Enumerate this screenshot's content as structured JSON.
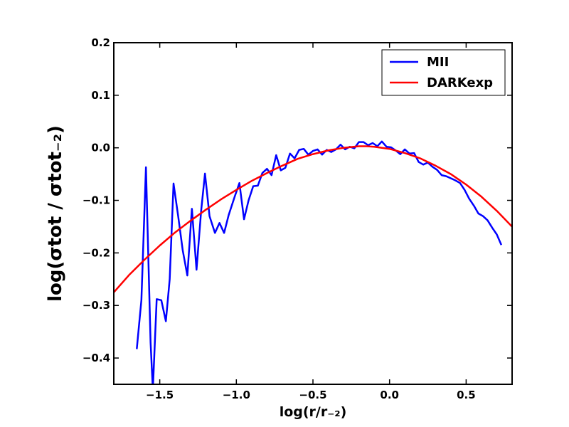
{
  "chart_data": {
    "type": "line",
    "title": "",
    "xlabel": "log(r/r₋₂)",
    "ylabel": "log(σtot / σtot₋₂)",
    "xlim": [
      -1.8,
      0.8
    ],
    "ylim": [
      -0.45,
      0.2
    ],
    "xticks": [
      -1.5,
      -1.0,
      -0.5,
      0.0,
      0.5
    ],
    "xtick_labels": [
      "−1.5",
      "−1.0",
      "−0.5",
      "0.0",
      "0.5"
    ],
    "yticks": [
      -0.4,
      -0.3,
      -0.2,
      -0.1,
      0.0,
      0.1,
      0.2
    ],
    "ytick_labels": [
      "−0.4",
      "−0.3",
      "−0.2",
      "−0.1",
      "0.0",
      "0.1",
      "0.2"
    ],
    "grid": false,
    "legend_position": "top-right",
    "series": [
      {
        "name": "MII",
        "color": "#0000ff",
        "points": [
          [
            -1.65,
            -0.383
          ],
          [
            -1.62,
            -0.29
          ],
          [
            -1.59,
            -0.037
          ],
          [
            -1.56,
            -0.37
          ],
          [
            -1.545,
            -0.46
          ],
          [
            -1.52,
            -0.288
          ],
          [
            -1.49,
            -0.29
          ],
          [
            -1.46,
            -0.33
          ],
          [
            -1.435,
            -0.25
          ],
          [
            -1.41,
            -0.068
          ],
          [
            -1.38,
            -0.13
          ],
          [
            -1.35,
            -0.195
          ],
          [
            -1.32,
            -0.243
          ],
          [
            -1.29,
            -0.116
          ],
          [
            -1.26,
            -0.232
          ],
          [
            -1.23,
            -0.12
          ],
          [
            -1.205,
            -0.049
          ],
          [
            -1.175,
            -0.13
          ],
          [
            -1.14,
            -0.162
          ],
          [
            -1.11,
            -0.143
          ],
          [
            -1.08,
            -0.162
          ],
          [
            -1.05,
            -0.128
          ],
          [
            -1.01,
            -0.092
          ],
          [
            -0.98,
            -0.067
          ],
          [
            -0.95,
            -0.136
          ],
          [
            -0.92,
            -0.1
          ],
          [
            -0.89,
            -0.073
          ],
          [
            -0.86,
            -0.072
          ],
          [
            -0.83,
            -0.048
          ],
          [
            -0.8,
            -0.04
          ],
          [
            -0.77,
            -0.052
          ],
          [
            -0.74,
            -0.014
          ],
          [
            -0.71,
            -0.043
          ],
          [
            -0.68,
            -0.038
          ],
          [
            -0.65,
            -0.011
          ],
          [
            -0.62,
            -0.02
          ],
          [
            -0.59,
            -0.004
          ],
          [
            -0.56,
            -0.002
          ],
          [
            -0.53,
            -0.013
          ],
          [
            -0.5,
            -0.006
          ],
          [
            -0.47,
            -0.003
          ],
          [
            -0.44,
            -0.013
          ],
          [
            -0.41,
            -0.004
          ],
          [
            -0.38,
            -0.008
          ],
          [
            -0.35,
            -0.003
          ],
          [
            -0.32,
            0.006
          ],
          [
            -0.29,
            -0.003
          ],
          [
            -0.26,
            0.002
          ],
          [
            -0.23,
            -0.001
          ],
          [
            -0.2,
            0.011
          ],
          [
            -0.17,
            0.011
          ],
          [
            -0.14,
            0.005
          ],
          [
            -0.11,
            0.009
          ],
          [
            -0.08,
            0.003
          ],
          [
            -0.05,
            0.012
          ],
          [
            -0.02,
            0.002
          ],
          [
            0.01,
            0.001
          ],
          [
            0.04,
            -0.005
          ],
          [
            0.07,
            -0.012
          ],
          [
            0.1,
            -0.003
          ],
          [
            0.13,
            -0.011
          ],
          [
            0.16,
            -0.01
          ],
          [
            0.19,
            -0.027
          ],
          [
            0.22,
            -0.032
          ],
          [
            0.25,
            -0.028
          ],
          [
            0.28,
            -0.036
          ],
          [
            0.31,
            -0.042
          ],
          [
            0.34,
            -0.052
          ],
          [
            0.37,
            -0.054
          ],
          [
            0.4,
            -0.058
          ],
          [
            0.43,
            -0.062
          ],
          [
            0.46,
            -0.067
          ],
          [
            0.49,
            -0.08
          ],
          [
            0.52,
            -0.097
          ],
          [
            0.55,
            -0.11
          ],
          [
            0.58,
            -0.125
          ],
          [
            0.61,
            -0.13
          ],
          [
            0.64,
            -0.138
          ],
          [
            0.67,
            -0.152
          ],
          [
            0.7,
            -0.165
          ],
          [
            0.73,
            -0.185
          ]
        ]
      },
      {
        "name": "DARKexp",
        "color": "#ff0000",
        "points": [
          [
            -1.8,
            -0.275
          ],
          [
            -1.7,
            -0.242
          ],
          [
            -1.6,
            -0.213
          ],
          [
            -1.5,
            -0.186
          ],
          [
            -1.4,
            -0.161
          ],
          [
            -1.3,
            -0.139
          ],
          [
            -1.2,
            -0.118
          ],
          [
            -1.1,
            -0.098
          ],
          [
            -1.0,
            -0.08
          ],
          [
            -0.9,
            -0.063
          ],
          [
            -0.8,
            -0.048
          ],
          [
            -0.7,
            -0.034
          ],
          [
            -0.6,
            -0.021
          ],
          [
            -0.5,
            -0.012
          ],
          [
            -0.4,
            -0.005
          ],
          [
            -0.3,
            0.0
          ],
          [
            -0.2,
            0.003
          ],
          [
            -0.15,
            0.003
          ],
          [
            -0.1,
            0.002
          ],
          [
            0.0,
            -0.002
          ],
          [
            0.1,
            -0.01
          ],
          [
            0.2,
            -0.02
          ],
          [
            0.3,
            -0.034
          ],
          [
            0.4,
            -0.05
          ],
          [
            0.5,
            -0.07
          ],
          [
            0.6,
            -0.093
          ],
          [
            0.7,
            -0.12
          ],
          [
            0.8,
            -0.15
          ]
        ]
      }
    ]
  }
}
